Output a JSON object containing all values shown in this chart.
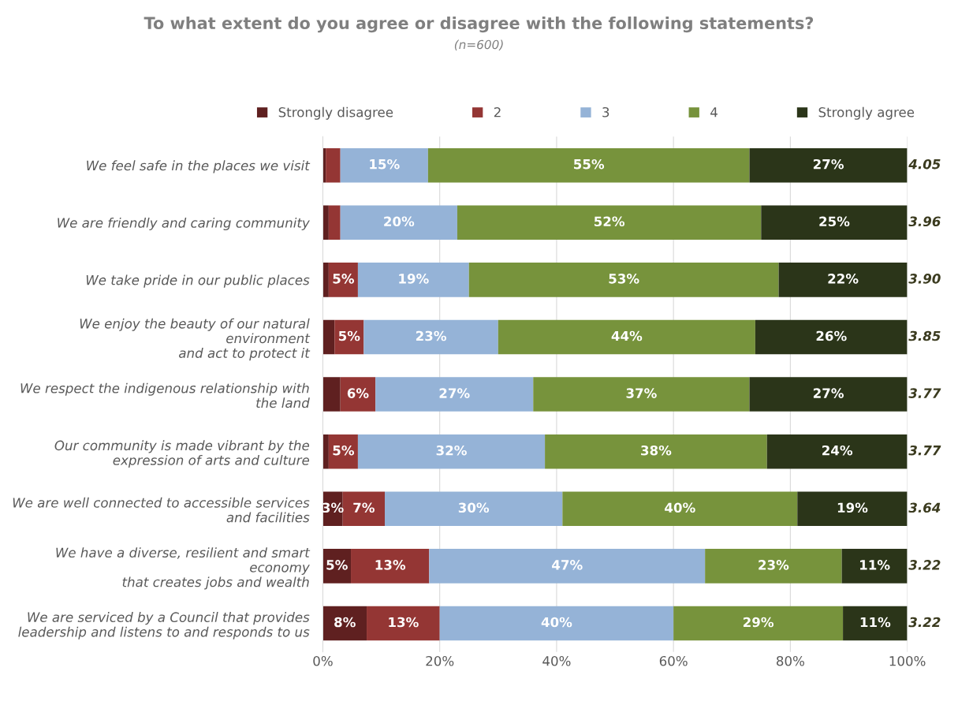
{
  "chart_data": {
    "type": "bar",
    "orientation": "horizontal",
    "stacked": true,
    "title": "To what extent do you agree or disagree with the following statements?",
    "subtitle": "(n=600)",
    "categories": [
      "We feel safe in the places we visit",
      "We are friendly and caring community",
      "We take pride in our public places",
      "We enjoy the beauty of our natural environment and act to protect it",
      "We respect the indigenous relationship with the land",
      "Our community is made vibrant by the expression of arts and culture",
      "We are well connected to accessible services and facilities",
      "We have a diverse, resilient and smart economy that creates jobs and wealth",
      "We are serviced by a Council that provides leadership and listens to and responds to us"
    ],
    "series": [
      {
        "name": "Strongly disagree",
        "color": "#5f2020",
        "values": [
          0.5,
          1,
          1,
          2,
          3,
          1,
          3.4,
          4.8,
          7.5
        ],
        "value_labels": [
          null,
          null,
          null,
          null,
          null,
          null,
          "3%",
          "5%",
          "8%"
        ]
      },
      {
        "name": "2",
        "color": "#943634",
        "values": [
          2.5,
          2,
          5,
          5,
          6,
          5,
          7.2,
          13.4,
          12.5
        ],
        "value_labels": [
          null,
          null,
          "5%",
          "5%",
          "6%",
          "5%",
          "7%",
          "13%",
          "13%"
        ]
      },
      {
        "name": "3",
        "color": "#95b3d7",
        "values": [
          15,
          20,
          19,
          23,
          27,
          32,
          30.4,
          47.2,
          40
        ],
        "value_labels": [
          "15%",
          "20%",
          "19%",
          "23%",
          "27%",
          "32%",
          "30%",
          "47%",
          "40%"
        ]
      },
      {
        "name": "4",
        "color": "#77933c",
        "values": [
          55,
          52,
          53,
          44,
          37,
          38,
          40.2,
          23.4,
          29
        ],
        "value_labels": [
          "55%",
          "52%",
          "53%",
          "44%",
          "37%",
          "38%",
          "40%",
          "23%",
          "29%"
        ]
      },
      {
        "name": "Strongly agree",
        "color": "#2b3519",
        "values": [
          27,
          25,
          22,
          26,
          27,
          24,
          18.8,
          11.2,
          11
        ],
        "value_labels": [
          "27%",
          "25%",
          "22%",
          "26%",
          "27%",
          "24%",
          "19%",
          "11%",
          "11%"
        ]
      }
    ],
    "annotations": [
      "4.05",
      "3.96",
      "3.90",
      "3.85",
      "3.77",
      "3.77",
      "3.64",
      "3.22",
      "3.22"
    ],
    "xlim": [
      0,
      100
    ],
    "xticks": [
      {
        "value": 0,
        "label": "0%"
      },
      {
        "value": 20,
        "label": "20%"
      },
      {
        "value": 40,
        "label": "40%"
      },
      {
        "value": 60,
        "label": "60%"
      },
      {
        "value": 80,
        "label": "80%"
      },
      {
        "value": 100,
        "label": "100%"
      }
    ],
    "grid": "x",
    "legend": "top"
  }
}
